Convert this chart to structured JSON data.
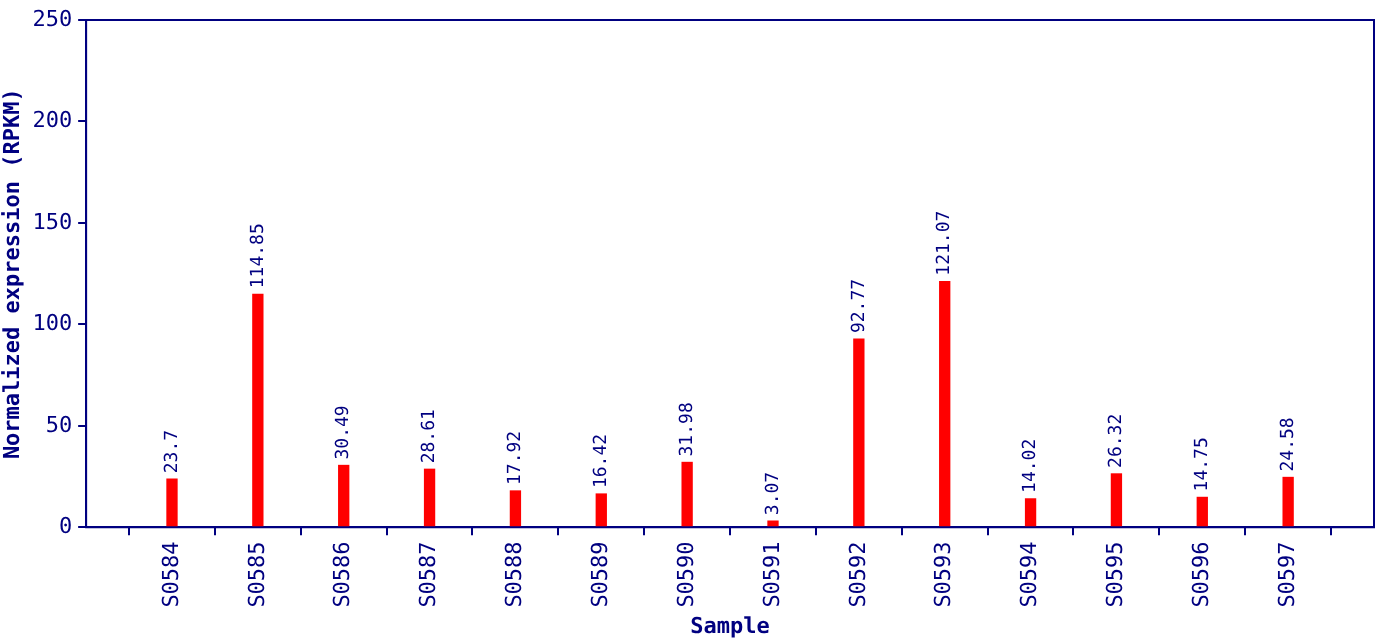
{
  "chart_data": {
    "type": "bar",
    "xlabel": "Sample",
    "ylabel": "Normalized expression (RPKM)",
    "categories": [
      "S0584",
      "S0585",
      "S0586",
      "S0587",
      "S0588",
      "S0589",
      "S0590",
      "S0591",
      "S0592",
      "S0593",
      "S0594",
      "S0595",
      "S0596",
      "S0597"
    ],
    "values": [
      23.7,
      114.85,
      30.49,
      28.61,
      17.92,
      16.42,
      31.98,
      3.07,
      92.77,
      121.07,
      14.02,
      26.32,
      14.75,
      24.58
    ],
    "color": "#ff0000",
    "ylim": [
      0,
      250
    ],
    "yticks": [
      0,
      50,
      100,
      150,
      200,
      250
    ],
    "grid": false,
    "legend": false,
    "data_labels": true
  }
}
